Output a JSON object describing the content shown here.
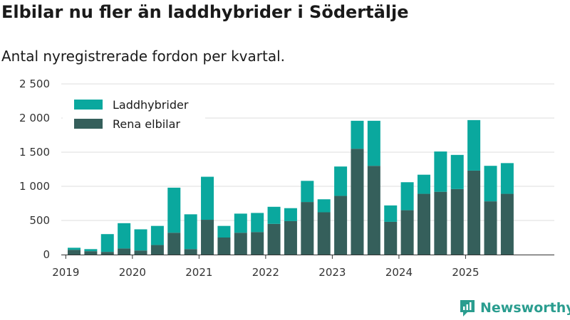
{
  "title": "Elbilar nu fler än laddhybrider i Södertälje",
  "subtitle": "Antal nyregistrerade fordon per kvartal.",
  "brand": {
    "name": "Newsworthy",
    "logo_icon": "newsworthy-logo-icon"
  },
  "colors": {
    "laddhybrider": "#0aa89e",
    "rena_elbilar": "#355f5b",
    "grid": "#dddddd",
    "axis": "#333333"
  },
  "chart_data": {
    "type": "bar",
    "stacked": true,
    "title": "Elbilar nu fler än laddhybrider i Södertälje",
    "subtitle": "Antal nyregistrerade fordon per kvartal.",
    "xlabel": "",
    "ylabel": "",
    "ylim": [
      0,
      2500
    ],
    "yticks": [
      0,
      500,
      1000,
      1500,
      2000,
      2500
    ],
    "ytick_labels": [
      "0",
      "500",
      "1 000",
      "1 500",
      "2 000",
      "2 500"
    ],
    "xticks": [
      {
        "label": "2019",
        "index": -0.5
      },
      {
        "label": "2020",
        "index": 3.5
      },
      {
        "label": "2021",
        "index": 7.5
      },
      {
        "label": "2022",
        "index": 11.5
      },
      {
        "label": "2023",
        "index": 15.5
      },
      {
        "label": "2024",
        "index": 19.5
      },
      {
        "label": "2025",
        "index": 23.5
      }
    ],
    "categories": [
      "2019 Q2",
      "2019 Q3",
      "2019 Q4",
      "2020 Q1",
      "2020 Q2",
      "2020 Q3",
      "2020 Q4",
      "2021 Q1",
      "2021 Q2",
      "2021 Q3",
      "2021 Q4",
      "2022 Q1",
      "2022 Q2",
      "2022 Q3",
      "2022 Q4",
      "2023 Q1",
      "2023 Q2",
      "2023 Q3",
      "2023 Q4",
      "2024 Q1",
      "2024 Q2",
      "2024 Q3",
      "2024 Q4",
      "2025 Q1",
      "2025 Q2",
      "2025 Q3",
      "2025 Q4"
    ],
    "series": [
      {
        "name": "Rena elbilar",
        "color": "#355f5b",
        "values": [
          70,
          50,
          40,
          90,
          60,
          140,
          320,
          80,
          510,
          250,
          320,
          330,
          450,
          490,
          770,
          620,
          860,
          1550,
          1300,
          480,
          650,
          890,
          920,
          960,
          1230,
          780,
          890
        ]
      },
      {
        "name": "Laddhybrider",
        "color": "#0aa89e",
        "values": [
          30,
          30,
          260,
          370,
          310,
          280,
          660,
          510,
          630,
          170,
          280,
          280,
          250,
          190,
          310,
          190,
          430,
          410,
          660,
          240,
          410,
          280,
          590,
          500,
          740,
          520,
          450
        ]
      }
    ],
    "legend": {
      "position": "top-left",
      "entries": [
        {
          "label": "Laddhybrider",
          "color": "#0aa89e"
        },
        {
          "label": "Rena elbilar",
          "color": "#355f5b"
        }
      ]
    }
  }
}
